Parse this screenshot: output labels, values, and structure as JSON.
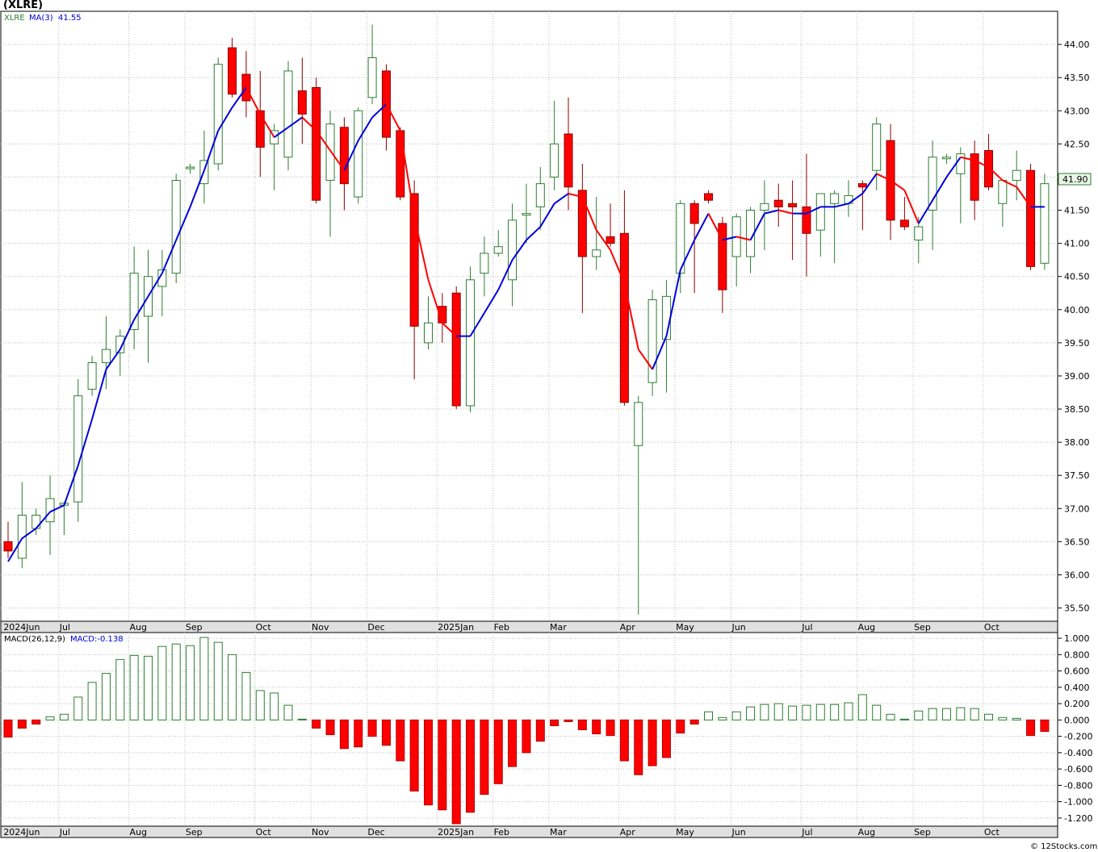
{
  "title": "(XLRE)",
  "footer": "© 12Stocks.com",
  "colors": {
    "up_candle": "#2e7d32",
    "down_candle": "#ff0000",
    "ma_up": "#0000dd",
    "ma_down": "#ff0000",
    "macd_pos": "#2e7d32",
    "macd_neg": "#ff0000",
    "grid": "#bdbdbd",
    "axis_bar": "#e0e0e0"
  },
  "price_legend": {
    "symbol": "XLRE",
    "ma_label": "MA(3)",
    "ma_value": "41.55"
  },
  "last_price_label": "41.90",
  "macd_legend": {
    "label": "MACD(26,12,9)",
    "value_label": "MACD:-0.138"
  },
  "chart_data": [
    {
      "type": "candlestick",
      "title": "(XLRE)",
      "ylim": [
        35.3,
        44.5
      ],
      "y_ticks": [
        "44.00",
        "43.50",
        "43.00",
        "42.50",
        "42.00",
        "41.50",
        "41.00",
        "40.50",
        "40.00",
        "39.50",
        "39.00",
        "38.50",
        "38.00",
        "37.50",
        "37.00",
        "36.50",
        "36.00",
        "35.50"
      ],
      "month_labels": [
        "2024Jun",
        "Jul",
        "Aug",
        "Sep",
        "Oct",
        "Nov",
        "Dec",
        "2025Jan",
        "Feb",
        "Mar",
        "Apr",
        "May",
        "Jun",
        "Jul",
        "Aug",
        "Sep",
        "Oct"
      ],
      "month_start_index": [
        0,
        4,
        9,
        13,
        18,
        22,
        26,
        31,
        35,
        39,
        44,
        48,
        52,
        57,
        61,
        65,
        70
      ],
      "grid": true,
      "last_value": 41.9,
      "ohlc": [
        [
          36.5,
          36.8,
          36.25,
          36.36
        ],
        [
          36.25,
          37.4,
          36.1,
          36.9
        ],
        [
          36.7,
          37.0,
          36.6,
          36.9
        ],
        [
          36.8,
          37.5,
          36.3,
          37.15
        ],
        [
          37.05,
          37.1,
          36.6,
          37.08
        ],
        [
          37.1,
          38.95,
          36.8,
          38.7
        ],
        [
          38.8,
          39.3,
          38.7,
          39.2
        ],
        [
          39.2,
          39.9,
          38.8,
          39.4
        ],
        [
          39.35,
          39.7,
          39.0,
          39.6
        ],
        [
          39.7,
          40.95,
          39.4,
          40.55
        ],
        [
          39.9,
          40.9,
          39.2,
          40.5
        ],
        [
          40.35,
          40.9,
          39.9,
          40.6
        ],
        [
          40.55,
          42.05,
          40.4,
          41.95
        ],
        [
          42.15,
          42.2,
          42.05,
          42.15
        ],
        [
          41.9,
          42.7,
          41.6,
          42.25
        ],
        [
          42.2,
          43.8,
          42.1,
          43.7
        ],
        [
          43.95,
          44.1,
          43.2,
          43.25
        ],
        [
          43.55,
          43.9,
          42.9,
          43.15
        ],
        [
          43.0,
          43.6,
          42.0,
          42.45
        ],
        [
          42.5,
          42.8,
          41.8,
          42.7
        ],
        [
          42.3,
          43.75,
          42.1,
          43.6
        ],
        [
          43.3,
          43.8,
          42.5,
          42.95
        ],
        [
          43.35,
          43.5,
          41.6,
          41.65
        ],
        [
          41.95,
          43.0,
          41.1,
          42.8
        ],
        [
          42.75,
          42.9,
          41.5,
          41.9
        ],
        [
          41.7,
          43.05,
          41.6,
          43.0
        ],
        [
          43.2,
          44.3,
          43.1,
          43.8
        ],
        [
          43.6,
          43.7,
          42.4,
          42.6
        ],
        [
          42.7,
          42.75,
          41.65,
          41.7
        ],
        [
          41.75,
          41.95,
          38.95,
          39.75
        ],
        [
          39.5,
          40.2,
          39.4,
          39.8
        ],
        [
          40.05,
          40.25,
          39.5,
          39.8
        ],
        [
          40.25,
          40.35,
          38.5,
          38.55
        ],
        [
          38.55,
          40.65,
          38.45,
          40.45
        ],
        [
          40.55,
          41.1,
          40.2,
          40.85
        ],
        [
          40.85,
          41.2,
          40.8,
          40.95
        ],
        [
          40.45,
          41.6,
          40.05,
          41.35
        ],
        [
          41.45,
          41.9,
          41.0,
          41.45
        ],
        [
          41.55,
          42.15,
          41.2,
          41.9
        ],
        [
          42.0,
          43.15,
          41.8,
          42.5
        ],
        [
          42.65,
          43.2,
          41.5,
          41.85
        ],
        [
          41.8,
          42.2,
          39.95,
          40.8
        ],
        [
          40.8,
          41.7,
          40.6,
          40.9
        ],
        [
          41.1,
          41.6,
          40.95,
          41.0
        ],
        [
          41.15,
          41.8,
          38.55,
          38.6
        ],
        [
          37.95,
          38.7,
          35.4,
          38.6
        ],
        [
          38.9,
          40.3,
          38.7,
          40.15
        ],
        [
          39.55,
          40.45,
          38.75,
          40.2
        ],
        [
          40.55,
          41.65,
          40.25,
          41.6
        ],
        [
          41.6,
          41.65,
          40.25,
          41.3
        ],
        [
          41.75,
          41.8,
          41.6,
          41.65
        ],
        [
          41.3,
          41.4,
          39.95,
          40.3
        ],
        [
          40.8,
          41.45,
          40.35,
          41.4
        ],
        [
          40.8,
          41.55,
          40.55,
          41.5
        ],
        [
          41.5,
          41.95,
          40.9,
          41.6
        ],
        [
          41.65,
          41.9,
          41.25,
          41.55
        ],
        [
          41.6,
          41.95,
          40.75,
          41.55
        ],
        [
          41.55,
          42.35,
          40.5,
          41.15
        ],
        [
          41.2,
          41.75,
          40.8,
          41.75
        ],
        [
          41.6,
          41.8,
          40.7,
          41.75
        ],
        [
          41.6,
          41.95,
          41.4,
          41.72
        ],
        [
          41.9,
          41.95,
          41.2,
          41.85
        ],
        [
          42.1,
          42.9,
          41.8,
          42.8
        ],
        [
          42.55,
          42.8,
          41.05,
          41.35
        ],
        [
          41.35,
          41.7,
          41.2,
          41.25
        ],
        [
          41.05,
          41.4,
          40.7,
          41.25
        ],
        [
          41.5,
          42.55,
          40.9,
          42.3
        ],
        [
          42.3,
          42.35,
          42.2,
          42.3
        ],
        [
          42.05,
          42.45,
          41.3,
          42.35
        ],
        [
          42.35,
          42.55,
          41.35,
          41.65
        ],
        [
          42.4,
          42.65,
          41.8,
          41.85
        ],
        [
          41.6,
          41.9,
          41.25,
          41.95
        ],
        [
          41.95,
          42.4,
          41.65,
          42.1
        ],
        [
          42.1,
          42.2,
          40.6,
          40.65
        ],
        [
          40.7,
          42.05,
          40.6,
          41.9
        ]
      ],
      "ma3": [
        36.2,
        36.55,
        36.7,
        36.95,
        37.05,
        37.65,
        38.35,
        39.1,
        39.4,
        39.85,
        40.2,
        40.55,
        41.05,
        41.55,
        42.1,
        42.7,
        43.05,
        43.35,
        42.95,
        42.6,
        42.75,
        42.9,
        42.7,
        42.4,
        42.1,
        42.55,
        42.9,
        43.1,
        42.7,
        41.4,
        40.45,
        39.8,
        39.6,
        39.6,
        39.95,
        40.3,
        40.75,
        41.05,
        41.25,
        41.6,
        41.75,
        41.7,
        41.2,
        40.9,
        40.4,
        39.4,
        39.1,
        39.6,
        40.6,
        41.05,
        41.45,
        41.05,
        41.1,
        41.05,
        41.45,
        41.5,
        41.45,
        41.45,
        41.55,
        41.55,
        41.6,
        41.75,
        42.05,
        41.95,
        41.8,
        41.3,
        41.65,
        42.0,
        42.3,
        42.25,
        42.15,
        41.95,
        41.85,
        41.55,
        41.55
      ]
    },
    {
      "type": "bar",
      "title": "MACD(26,12,9)",
      "ylim": [
        -1.3,
        1.07
      ],
      "y_ticks": [
        "1.000",
        "0.800",
        "0.600",
        "0.400",
        "0.200",
        "0.000",
        "-0.200",
        "-0.400",
        "-0.600",
        "-0.800",
        "-1.000",
        "-1.200"
      ],
      "month_labels": [
        "2024Jun",
        "Jul",
        "Aug",
        "Sep",
        "Oct",
        "Nov",
        "Dec",
        "2025Jan",
        "Feb",
        "Mar",
        "Apr",
        "May",
        "Jun",
        "Jul",
        "Aug",
        "Sep",
        "Oct"
      ],
      "values": [
        -0.21,
        -0.1,
        -0.05,
        0.04,
        0.07,
        0.28,
        0.46,
        0.57,
        0.74,
        0.79,
        0.78,
        0.9,
        0.93,
        0.91,
        1.01,
        0.95,
        0.8,
        0.58,
        0.36,
        0.33,
        0.18,
        0.01,
        -0.1,
        -0.18,
        -0.35,
        -0.33,
        -0.2,
        -0.31,
        -0.5,
        -0.87,
        -1.04,
        -1.1,
        -1.27,
        -1.13,
        -0.91,
        -0.78,
        -0.57,
        -0.4,
        -0.26,
        -0.07,
        -0.02,
        -0.12,
        -0.17,
        -0.19,
        -0.5,
        -0.67,
        -0.56,
        -0.46,
        -0.16,
        -0.05,
        0.1,
        0.03,
        0.1,
        0.16,
        0.19,
        0.2,
        0.17,
        0.18,
        0.19,
        0.19,
        0.21,
        0.31,
        0.18,
        0.07,
        0.01,
        0.11,
        0.14,
        0.14,
        0.15,
        0.14,
        0.07,
        0.03,
        0.02,
        -0.19,
        -0.14
      ]
    }
  ]
}
